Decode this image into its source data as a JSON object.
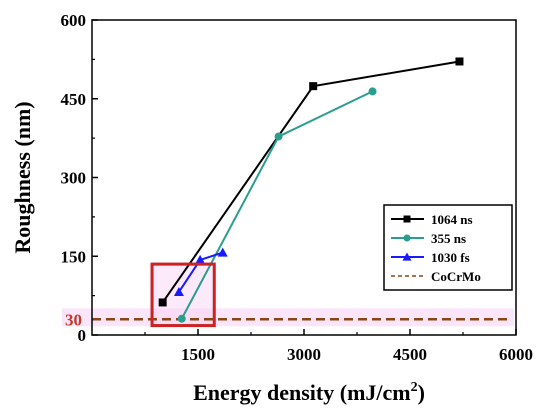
{
  "chart_data": {
    "type": "line",
    "title": "",
    "xlabel_main": "Energy density (mJ/cm",
    "xlabel_sup": "2",
    "xlabel_tail": ")",
    "ylabel": "Roughness (nm)",
    "xlim": [
      0,
      6000
    ],
    "ylim": [
      0,
      600
    ],
    "x_ticks": [
      {
        "value": 1500,
        "label": "1500"
      },
      {
        "value": 3000,
        "label": "3000"
      },
      {
        "value": 4500,
        "label": "4500"
      },
      {
        "value": 6000,
        "label": "6000"
      }
    ],
    "y_ticks": [
      {
        "value": 0,
        "label": "0"
      },
      {
        "value": 150,
        "label": "150"
      },
      {
        "value": 300,
        "label": "300"
      },
      {
        "value": 450,
        "label": "450"
      },
      {
        "value": 600,
        "label": "600"
      }
    ],
    "extra_y_label": {
      "value": 30,
      "label": "30",
      "color": "#c0392b"
    },
    "legend_position": "bottom-right",
    "series": [
      {
        "name": "1064 ns",
        "color": "#000000",
        "marker": "square",
        "points": [
          [
            1000,
            62
          ],
          [
            3130,
            474
          ],
          [
            5200,
            521
          ]
        ]
      },
      {
        "name": "355 ns",
        "color": "#2a9d8f",
        "marker": "circle",
        "points": [
          [
            1270,
            31
          ],
          [
            2640,
            378
          ],
          [
            3970,
            464
          ]
        ]
      },
      {
        "name": "1030 fs",
        "color": "#1a1aff",
        "marker": "triangle",
        "points": [
          [
            1230,
            82
          ],
          [
            1530,
            143
          ],
          [
            1850,
            157
          ]
        ]
      }
    ],
    "reference_line": {
      "name": "CoCrMo",
      "y": 30,
      "color": "#8b4513",
      "style": "dashed"
    },
    "highlight_box": {
      "x_range": [
        850,
        1730
      ],
      "y_range": [
        18,
        135
      ],
      "color": "#cc2222"
    },
    "band": {
      "y": 30,
      "color": "#f8d0f5"
    }
  }
}
